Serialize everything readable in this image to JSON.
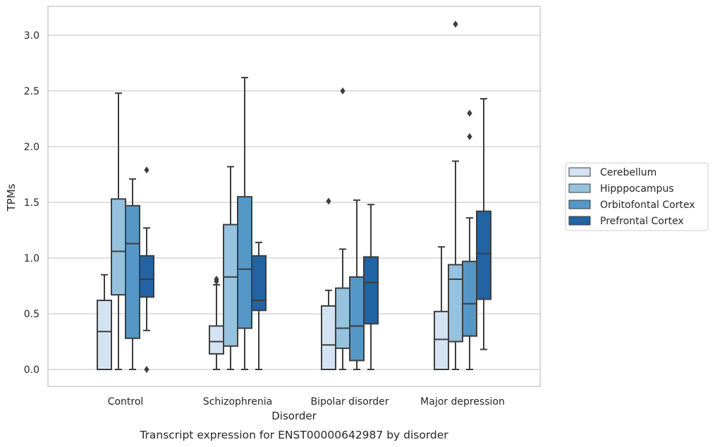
{
  "chart_data": {
    "type": "box",
    "xlabel": "Disorder",
    "ylabel": "TPMs",
    "caption": "Transcript expression for ENST00000642987 by disorder",
    "ylim": [
      -0.15,
      3.25
    ],
    "yticks": [
      "0.0",
      "0.5",
      "1.0",
      "1.5",
      "2.0",
      "2.5",
      "3.0"
    ],
    "ytick_values": [
      0,
      0.5,
      1.0,
      1.5,
      2.0,
      2.5,
      3.0
    ],
    "grid": true,
    "legend_position": "right",
    "categories": [
      "Control",
      "Schizophrenia",
      "Bipolar disorder",
      "Major depression"
    ],
    "series": [
      {
        "name": "Cerebellum",
        "color": "#d4e3f2",
        "boxes": [
          {
            "whislo": 0.0,
            "q1": 0.0,
            "med": 0.34,
            "q3": 0.62,
            "whishi": 0.85,
            "fliers": []
          },
          {
            "whislo": 0.0,
            "q1": 0.14,
            "med": 0.25,
            "q3": 0.39,
            "whishi": 0.76,
            "fliers": [
              0.79,
              0.81
            ]
          },
          {
            "whislo": 0.0,
            "q1": 0.0,
            "med": 0.22,
            "q3": 0.57,
            "whishi": 0.71,
            "fliers": [
              1.51
            ]
          },
          {
            "whislo": 0.0,
            "q1": 0.0,
            "med": 0.27,
            "q3": 0.52,
            "whishi": 1.1,
            "fliers": []
          }
        ]
      },
      {
        "name": "Hipppocampus",
        "color": "#97c2de",
        "boxes": [
          {
            "whislo": 0.0,
            "q1": 0.67,
            "med": 1.06,
            "q3": 1.53,
            "whishi": 2.48,
            "fliers": []
          },
          {
            "whislo": 0.0,
            "q1": 0.21,
            "med": 0.83,
            "q3": 1.3,
            "whishi": 1.82,
            "fliers": []
          },
          {
            "whislo": 0.0,
            "q1": 0.19,
            "med": 0.37,
            "q3": 0.73,
            "whishi": 1.08,
            "fliers": [
              2.5
            ]
          },
          {
            "whislo": 0.0,
            "q1": 0.25,
            "med": 0.81,
            "q3": 0.94,
            "whishi": 1.87,
            "fliers": [
              3.1
            ]
          }
        ]
      },
      {
        "name": "Orbitofontal Cortex",
        "color": "#5597c7",
        "boxes": [
          {
            "whislo": 0.0,
            "q1": 0.28,
            "med": 1.13,
            "q3": 1.47,
            "whishi": 1.71,
            "fliers": []
          },
          {
            "whislo": 0.0,
            "q1": 0.37,
            "med": 0.9,
            "q3": 1.55,
            "whishi": 2.62,
            "fliers": []
          },
          {
            "whislo": 0.0,
            "q1": 0.08,
            "med": 0.39,
            "q3": 0.83,
            "whishi": 1.52,
            "fliers": []
          },
          {
            "whislo": 0.0,
            "q1": 0.3,
            "med": 0.59,
            "q3": 0.97,
            "whishi": 1.36,
            "fliers": [
              2.09,
              2.3
            ]
          }
        ]
      },
      {
        "name": "Prefrontal Cortex",
        "color": "#2163a3",
        "boxes": [
          {
            "whislo": 0.35,
            "q1": 0.65,
            "med": 0.81,
            "q3": 1.02,
            "whishi": 1.27,
            "fliers": [
              0.0,
              1.79
            ]
          },
          {
            "whislo": 0.0,
            "q1": 0.53,
            "med": 0.62,
            "q3": 1.02,
            "whishi": 1.14,
            "fliers": []
          },
          {
            "whislo": 0.0,
            "q1": 0.41,
            "med": 0.78,
            "q3": 1.01,
            "whishi": 1.48,
            "fliers": []
          },
          {
            "whislo": 0.18,
            "q1": 0.63,
            "med": 1.04,
            "q3": 1.42,
            "whishi": 2.43,
            "fliers": []
          }
        ]
      }
    ]
  }
}
